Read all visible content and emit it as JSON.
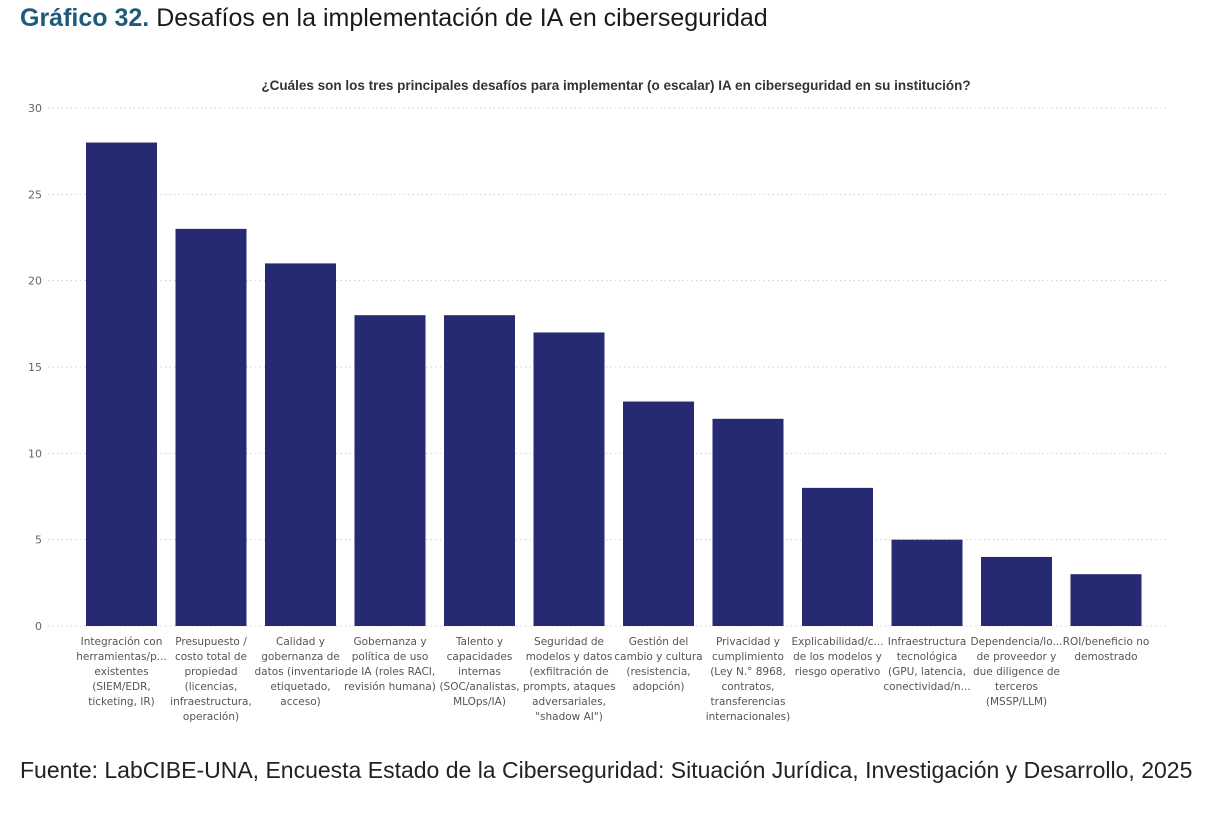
{
  "figure": {
    "number_label": "Gráfico 32.",
    "title": "Desafíos en la implementación de IA en ciberseguridad"
  },
  "source": "Fuente: LabCIBE-UNA, Encuesta Estado de la Ciberseguridad: Situación Jurídica, Investigación y Desarrollo, 2025",
  "colors": {
    "bar": "#252a72",
    "grid": "#d0d0d0",
    "figure_number": "#1f5a7a"
  },
  "chart_data": {
    "type": "bar",
    "title": "¿Cuáles son los tres principales desafíos para implementar (o escalar) IA en ciberseguridad en su institución?",
    "xlabel": "",
    "ylabel": "",
    "ylim": [
      0,
      30
    ],
    "yticks": [
      0,
      5,
      10,
      15,
      20,
      25,
      30
    ],
    "grid": true,
    "legend": "none",
    "categories": [
      [
        "Integración con",
        "herramientas/p...",
        "existentes",
        "(SIEM/EDR,",
        "ticketing, IR)"
      ],
      [
        "Presupuesto /",
        "costo total de",
        "propiedad",
        "(licencias,",
        "infraestructura,",
        "operación)"
      ],
      [
        "Calidad y",
        "gobernanza de",
        "datos (inventario,",
        "etiquetado,",
        "acceso)"
      ],
      [
        "Gobernanza y",
        "política de uso",
        "de IA (roles RACI,",
        "revisión humana)"
      ],
      [
        "Talento y",
        "capacidades",
        "internas",
        "(SOC/analistas,",
        "MLOps/IA)"
      ],
      [
        "Seguridad de",
        "modelos y datos",
        "(exfiltración de",
        "prompts, ataques",
        "adversariales,",
        "\"shadow AI\")"
      ],
      [
        "Gestión del",
        "cambio y cultura",
        "(resistencia,",
        "adopción)"
      ],
      [
        "Privacidad y",
        "cumplimiento",
        "(Ley N.° 8968,",
        "contratos,",
        "transferencias",
        "internacionales)"
      ],
      [
        "Explicabilidad/c...",
        "de los modelos y",
        "riesgo operativo"
      ],
      [
        "Infraestructura",
        "tecnológica",
        "(GPU, latencia,",
        "conectividad/n..."
      ],
      [
        "Dependencia/lo...",
        "de proveedor y",
        "due diligence de",
        "terceros",
        "(MSSP/LLM)"
      ],
      [
        "ROI/beneficio no",
        "demostrado"
      ]
    ],
    "values": [
      28,
      23,
      21,
      18,
      18,
      17,
      13,
      12,
      8,
      5,
      4,
      3
    ]
  }
}
